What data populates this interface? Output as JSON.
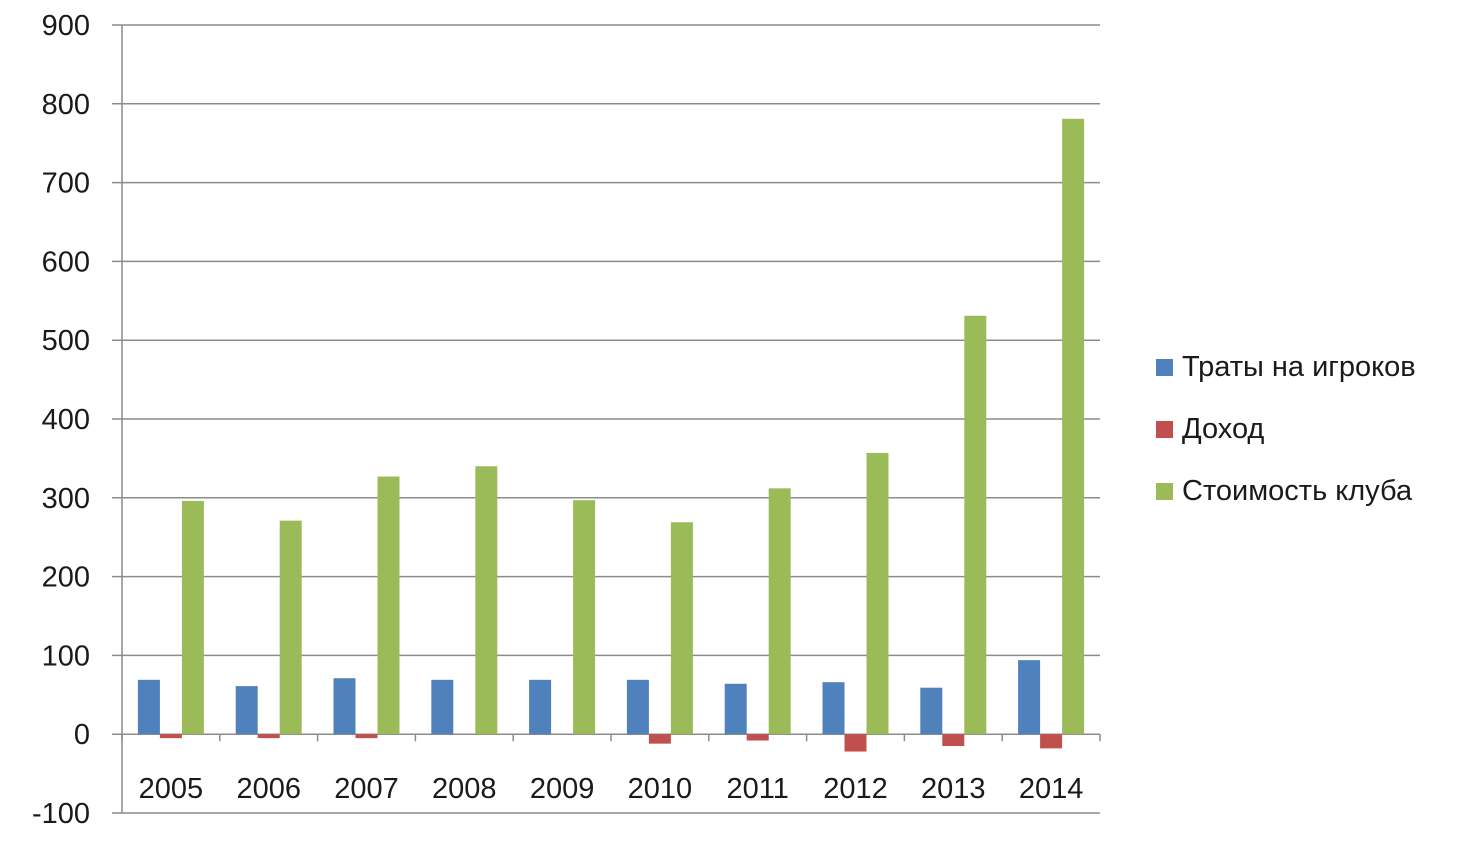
{
  "chart_data": {
    "type": "bar",
    "categories": [
      "2005",
      "2006",
      "2007",
      "2008",
      "2009",
      "2010",
      "2011",
      "2012",
      "2013",
      "2014"
    ],
    "series": [
      {
        "name": "Траты на игроков",
        "color": "#4f81bd",
        "values": [
          69,
          61,
          71,
          69,
          69,
          69,
          64,
          66,
          59,
          94
        ]
      },
      {
        "name": "Доход",
        "color": "#c0504d",
        "values": [
          -5,
          -5,
          -5,
          0,
          0,
          -12,
          -8,
          -22,
          -15,
          -18
        ]
      },
      {
        "name": "Стоимость клуба",
        "color": "#9bbb59",
        "values": [
          296,
          271,
          327,
          340,
          297,
          269,
          312,
          357,
          531,
          781
        ]
      }
    ],
    "yticks": [
      "900",
      "800",
      "700",
      "600",
      "500",
      "400",
      "300",
      "200",
      "100",
      "0",
      "-100"
    ],
    "ylim": [
      -100,
      900
    ],
    "grid": true,
    "legend_position": "right"
  }
}
